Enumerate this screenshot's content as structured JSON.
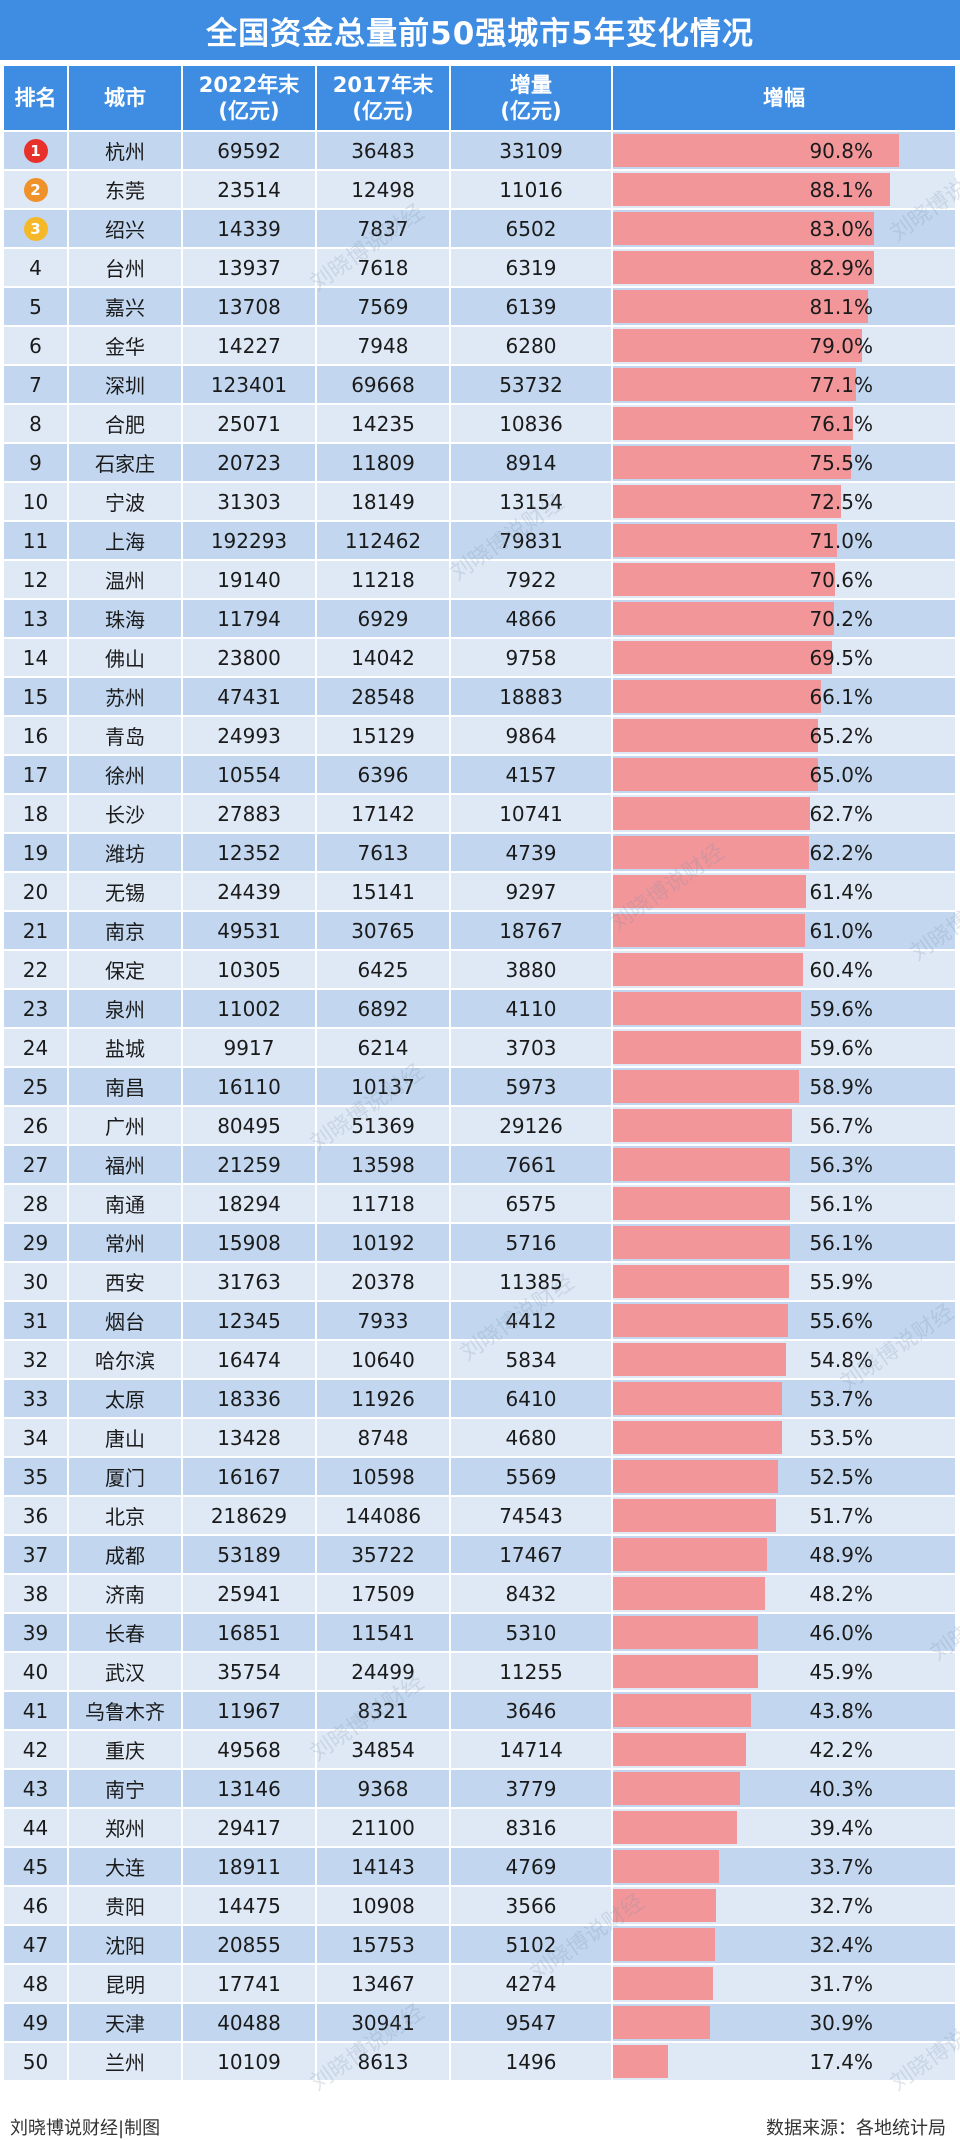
{
  "title": "全国资金总量前50强城市5年变化情况",
  "headers": {
    "rank": "排名",
    "city": "城市",
    "y2022": [
      "2022年末",
      "(亿元)"
    ],
    "y2017": [
      "2017年末",
      "(亿元)"
    ],
    "increase": [
      "增量",
      "(亿元)"
    ],
    "growth": "增幅"
  },
  "colors": {
    "header_bg": "#3f8de3",
    "bar": "#f2969a",
    "row_a": "#c2d7ef",
    "row_b": "#dfe9f6",
    "medal_1": "#e8312b",
    "medal_2": "#f0922a",
    "medal_3": "#f5b829"
  },
  "footer": {
    "left": "刘晓博说财经|制图",
    "right": "数据来源：各地统计局"
  },
  "watermark_text": "刘晓博说财经",
  "chart_data": {
    "type": "table",
    "title": "全国资金总量前50强城市5年变化情况",
    "bar_max": 90.8,
    "rows": [
      {
        "rank": "1",
        "city": "杭州",
        "y2022": "69592",
        "y2017": "36483",
        "inc": "33109",
        "pct": 90.8,
        "pct_label": "90.8%"
      },
      {
        "rank": "2",
        "city": "东莞",
        "y2022": "23514",
        "y2017": "12498",
        "inc": "11016",
        "pct": 88.1,
        "pct_label": "88.1%"
      },
      {
        "rank": "3",
        "city": "绍兴",
        "y2022": "14339",
        "y2017": "7837",
        "inc": "6502",
        "pct": 83.0,
        "pct_label": "83.0%"
      },
      {
        "rank": "4",
        "city": "台州",
        "y2022": "13937",
        "y2017": "7618",
        "inc": "6319",
        "pct": 82.9,
        "pct_label": "82.9%"
      },
      {
        "rank": "5",
        "city": "嘉兴",
        "y2022": "13708",
        "y2017": "7569",
        "inc": "6139",
        "pct": 81.1,
        "pct_label": "81.1%"
      },
      {
        "rank": "6",
        "city": "金华",
        "y2022": "14227",
        "y2017": "7948",
        "inc": "6280",
        "pct": 79.0,
        "pct_label": "79.0%"
      },
      {
        "rank": "7",
        "city": "深圳",
        "y2022": "123401",
        "y2017": "69668",
        "inc": "53732",
        "pct": 77.1,
        "pct_label": "77.1%"
      },
      {
        "rank": "8",
        "city": "合肥",
        "y2022": "25071",
        "y2017": "14235",
        "inc": "10836",
        "pct": 76.1,
        "pct_label": "76.1%"
      },
      {
        "rank": "9",
        "city": "石家庄",
        "y2022": "20723",
        "y2017": "11809",
        "inc": "8914",
        "pct": 75.5,
        "pct_label": "75.5%"
      },
      {
        "rank": "10",
        "city": "宁波",
        "y2022": "31303",
        "y2017": "18149",
        "inc": "13154",
        "pct": 72.5,
        "pct_label": "72.5%"
      },
      {
        "rank": "11",
        "city": "上海",
        "y2022": "192293",
        "y2017": "112462",
        "inc": "79831",
        "pct": 71.0,
        "pct_label": "71.0%"
      },
      {
        "rank": "12",
        "city": "温州",
        "y2022": "19140",
        "y2017": "11218",
        "inc": "7922",
        "pct": 70.6,
        "pct_label": "70.6%"
      },
      {
        "rank": "13",
        "city": "珠海",
        "y2022": "11794",
        "y2017": "6929",
        "inc": "4866",
        "pct": 70.2,
        "pct_label": "70.2%"
      },
      {
        "rank": "14",
        "city": "佛山",
        "y2022": "23800",
        "y2017": "14042",
        "inc": "9758",
        "pct": 69.5,
        "pct_label": "69.5%"
      },
      {
        "rank": "15",
        "city": "苏州",
        "y2022": "47431",
        "y2017": "28548",
        "inc": "18883",
        "pct": 66.1,
        "pct_label": "66.1%"
      },
      {
        "rank": "16",
        "city": "青岛",
        "y2022": "24993",
        "y2017": "15129",
        "inc": "9864",
        "pct": 65.2,
        "pct_label": "65.2%"
      },
      {
        "rank": "17",
        "city": "徐州",
        "y2022": "10554",
        "y2017": "6396",
        "inc": "4157",
        "pct": 65.0,
        "pct_label": "65.0%"
      },
      {
        "rank": "18",
        "city": "长沙",
        "y2022": "27883",
        "y2017": "17142",
        "inc": "10741",
        "pct": 62.7,
        "pct_label": "62.7%"
      },
      {
        "rank": "19",
        "city": "潍坊",
        "y2022": "12352",
        "y2017": "7613",
        "inc": "4739",
        "pct": 62.2,
        "pct_label": "62.2%"
      },
      {
        "rank": "20",
        "city": "无锡",
        "y2022": "24439",
        "y2017": "15141",
        "inc": "9297",
        "pct": 61.4,
        "pct_label": "61.4%"
      },
      {
        "rank": "21",
        "city": "南京",
        "y2022": "49531",
        "y2017": "30765",
        "inc": "18767",
        "pct": 61.0,
        "pct_label": "61.0%"
      },
      {
        "rank": "22",
        "city": "保定",
        "y2022": "10305",
        "y2017": "6425",
        "inc": "3880",
        "pct": 60.4,
        "pct_label": "60.4%"
      },
      {
        "rank": "23",
        "city": "泉州",
        "y2022": "11002",
        "y2017": "6892",
        "inc": "4110",
        "pct": 59.6,
        "pct_label": "59.6%"
      },
      {
        "rank": "24",
        "city": "盐城",
        "y2022": "9917",
        "y2017": "6214",
        "inc": "3703",
        "pct": 59.6,
        "pct_label": "59.6%"
      },
      {
        "rank": "25",
        "city": "南昌",
        "y2022": "16110",
        "y2017": "10137",
        "inc": "5973",
        "pct": 58.9,
        "pct_label": "58.9%"
      },
      {
        "rank": "26",
        "city": "广州",
        "y2022": "80495",
        "y2017": "51369",
        "inc": "29126",
        "pct": 56.7,
        "pct_label": "56.7%"
      },
      {
        "rank": "27",
        "city": "福州",
        "y2022": "21259",
        "y2017": "13598",
        "inc": "7661",
        "pct": 56.3,
        "pct_label": "56.3%"
      },
      {
        "rank": "28",
        "city": "南通",
        "y2022": "18294",
        "y2017": "11718",
        "inc": "6575",
        "pct": 56.1,
        "pct_label": "56.1%"
      },
      {
        "rank": "29",
        "city": "常州",
        "y2022": "15908",
        "y2017": "10192",
        "inc": "5716",
        "pct": 56.1,
        "pct_label": "56.1%"
      },
      {
        "rank": "30",
        "city": "西安",
        "y2022": "31763",
        "y2017": "20378",
        "inc": "11385",
        "pct": 55.9,
        "pct_label": "55.9%"
      },
      {
        "rank": "31",
        "city": "烟台",
        "y2022": "12345",
        "y2017": "7933",
        "inc": "4412",
        "pct": 55.6,
        "pct_label": "55.6%"
      },
      {
        "rank": "32",
        "city": "哈尔滨",
        "y2022": "16474",
        "y2017": "10640",
        "inc": "5834",
        "pct": 54.8,
        "pct_label": "54.8%"
      },
      {
        "rank": "33",
        "city": "太原",
        "y2022": "18336",
        "y2017": "11926",
        "inc": "6410",
        "pct": 53.7,
        "pct_label": "53.7%"
      },
      {
        "rank": "34",
        "city": "唐山",
        "y2022": "13428",
        "y2017": "8748",
        "inc": "4680",
        "pct": 53.5,
        "pct_label": "53.5%"
      },
      {
        "rank": "35",
        "city": "厦门",
        "y2022": "16167",
        "y2017": "10598",
        "inc": "5569",
        "pct": 52.5,
        "pct_label": "52.5%"
      },
      {
        "rank": "36",
        "city": "北京",
        "y2022": "218629",
        "y2017": "144086",
        "inc": "74543",
        "pct": 51.7,
        "pct_label": "51.7%"
      },
      {
        "rank": "37",
        "city": "成都",
        "y2022": "53189",
        "y2017": "35722",
        "inc": "17467",
        "pct": 48.9,
        "pct_label": "48.9%"
      },
      {
        "rank": "38",
        "city": "济南",
        "y2022": "25941",
        "y2017": "17509",
        "inc": "8432",
        "pct": 48.2,
        "pct_label": "48.2%"
      },
      {
        "rank": "39",
        "city": "长春",
        "y2022": "16851",
        "y2017": "11541",
        "inc": "5310",
        "pct": 46.0,
        "pct_label": "46.0%"
      },
      {
        "rank": "40",
        "city": "武汉",
        "y2022": "35754",
        "y2017": "24499",
        "inc": "11255",
        "pct": 45.9,
        "pct_label": "45.9%"
      },
      {
        "rank": "41",
        "city": "乌鲁木齐",
        "y2022": "11967",
        "y2017": "8321",
        "inc": "3646",
        "pct": 43.8,
        "pct_label": "43.8%"
      },
      {
        "rank": "42",
        "city": "重庆",
        "y2022": "49568",
        "y2017": "34854",
        "inc": "14714",
        "pct": 42.2,
        "pct_label": "42.2%"
      },
      {
        "rank": "43",
        "city": "南宁",
        "y2022": "13146",
        "y2017": "9368",
        "inc": "3779",
        "pct": 40.3,
        "pct_label": "40.3%"
      },
      {
        "rank": "44",
        "city": "郑州",
        "y2022": "29417",
        "y2017": "21100",
        "inc": "8316",
        "pct": 39.4,
        "pct_label": "39.4%"
      },
      {
        "rank": "45",
        "city": "大连",
        "y2022": "18911",
        "y2017": "14143",
        "inc": "4769",
        "pct": 33.7,
        "pct_label": "33.7%"
      },
      {
        "rank": "46",
        "city": "贵阳",
        "y2022": "14475",
        "y2017": "10908",
        "inc": "3566",
        "pct": 32.7,
        "pct_label": "32.7%"
      },
      {
        "rank": "47",
        "city": "沈阳",
        "y2022": "20855",
        "y2017": "15753",
        "inc": "5102",
        "pct": 32.4,
        "pct_label": "32.4%"
      },
      {
        "rank": "48",
        "city": "昆明",
        "y2022": "17741",
        "y2017": "13467",
        "inc": "4274",
        "pct": 31.7,
        "pct_label": "31.7%"
      },
      {
        "rank": "49",
        "city": "天津",
        "y2022": "40488",
        "y2017": "30941",
        "inc": "9547",
        "pct": 30.9,
        "pct_label": "30.9%"
      },
      {
        "rank": "50",
        "city": "兰州",
        "y2022": "10109",
        "y2017": "8613",
        "inc": "1496",
        "pct": 17.4,
        "pct_label": "17.4%"
      }
    ]
  }
}
